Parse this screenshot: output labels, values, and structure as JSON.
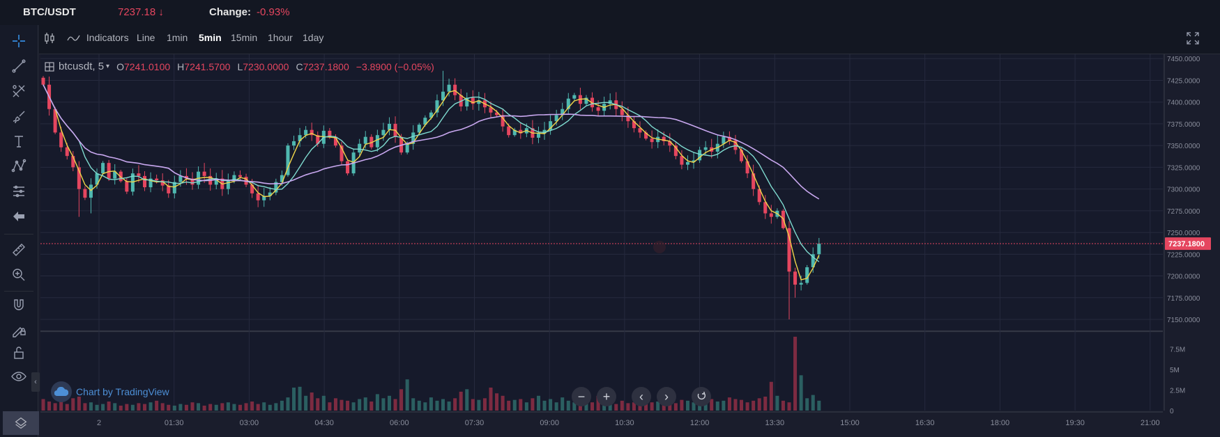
{
  "header": {
    "pair": "BTC/USDT",
    "price": "7237.18",
    "price_arrow": "↓",
    "change_label": "Change:",
    "change_value": "-0.93%"
  },
  "toolbar": {
    "indicators_label": "Indicators",
    "intervals": [
      "Line",
      "1min",
      "5min",
      "15min",
      "1hour",
      "1day"
    ],
    "active_interval": "5min"
  },
  "legend": {
    "symbol": "btcusdt, 5",
    "o_label": "O",
    "o_value": "7241.0100",
    "h_label": "H",
    "h_value": "7241.5700",
    "l_label": "L",
    "l_value": "7230.0000",
    "c_label": "C",
    "c_value": "7237.1800",
    "change": "−3.8900 (−0.05%)"
  },
  "watermark": "Chart by TradingView",
  "colors": {
    "up": "#4fb8b0",
    "down": "#e5465f",
    "ma_fast": "#f0d54a",
    "ma_mid": "#7fdbd0",
    "ma_slow": "#c9a8f0",
    "accent": "#3aa0ff",
    "background": "#131722"
  },
  "icons": {
    "left_tools": [
      "crosshair-icon",
      "trend-line-icon",
      "fib-icon",
      "brush-icon",
      "text-icon",
      "pattern-icon",
      "measure-icon",
      "back-arrow-icon",
      "ruler-icon",
      "zoom-in-icon",
      "magnet-icon",
      "lock-drawing-icon",
      "unlock-icon",
      "eye-icon"
    ]
  },
  "chart_data": {
    "type": "candlestick",
    "price_axis_ticks": [
      "7450.0000",
      "7425.0000",
      "7400.0000",
      "7375.0000",
      "7350.0000",
      "7325.0000",
      "7300.0000",
      "7275.0000",
      "7250.0000",
      "7225.0000",
      "7200.0000",
      "7175.0000",
      "7150.0000"
    ],
    "current_price_label": "7237.1800",
    "current_price": 7237.18,
    "ylim": [
      7138,
      7455
    ],
    "volume_axis_ticks": [
      "7.5M",
      "5M",
      "2.5M",
      "0"
    ],
    "volume_ylim": [
      0,
      9.5
    ],
    "time_axis_ticks": [
      "2",
      "01:30",
      "03:00",
      "04:30",
      "06:00",
      "07:30",
      "09:00",
      "10:30",
      "12:00",
      "13:30",
      "15:00",
      "16:30",
      "18:00",
      "19:30",
      "21:00"
    ],
    "closes": [
      7420,
      7392,
      7365,
      7348,
      7338,
      7325,
      7300,
      7290,
      7305,
      7318,
      7330,
      7312,
      7320,
      7309,
      7297,
      7318,
      7315,
      7302,
      7312,
      7310,
      7304,
      7295,
      7308,
      7315,
      7312,
      7305,
      7320,
      7315,
      7305,
      7312,
      7300,
      7310,
      7316,
      7314,
      7305,
      7295,
      7287,
      7292,
      7296,
      7308,
      7316,
      7350,
      7355,
      7362,
      7368,
      7362,
      7352,
      7367,
      7360,
      7350,
      7332,
      7318,
      7342,
      7352,
      7360,
      7348,
      7362,
      7368,
      7375,
      7360,
      7342,
      7352,
      7365,
      7374,
      7382,
      7388,
      7402,
      7412,
      7420,
      7408,
      7395,
      7405,
      7398,
      7402,
      7394,
      7388,
      7385,
      7372,
      7362,
      7368,
      7364,
      7370,
      7359,
      7364,
      7368,
      7378,
      7385,
      7392,
      7404,
      7408,
      7398,
      7405,
      7394,
      7390,
      7398,
      7402,
      7392,
      7385,
      7378,
      7370,
      7365,
      7358,
      7354,
      7360,
      7355,
      7350,
      7338,
      7328,
      7331,
      7333,
      7345,
      7348,
      7343,
      7352,
      7360,
      7356,
      7345,
      7332,
      7318,
      7300,
      7285,
      7272,
      7268,
      7275,
      7255,
      7205,
      7190,
      7192,
      7210,
      7225,
      7237.18
    ],
    "volumes": [
      1.4,
      1.1,
      0.9,
      1.3,
      0.8,
      1.5,
      1.7,
      0.9,
      1.0,
      0.7,
      0.8,
      1.1,
      0.9,
      0.6,
      0.8,
      0.7,
      0.9,
      0.8,
      1.0,
      1.2,
      0.9,
      0.7,
      0.6,
      0.8,
      0.7,
      1.0,
      0.9,
      0.6,
      0.8,
      0.7,
      0.9,
      1.0,
      0.8,
      0.7,
      0.9,
      1.1,
      0.8,
      1.0,
      0.7,
      0.9,
      1.2,
      1.6,
      2.8,
      2.9,
      1.8,
      2.2,
      1.5,
      1.8,
      1.0,
      1.5,
      1.3,
      1.2,
      1.0,
      1.4,
      1.6,
      1.1,
      2.0,
      1.5,
      1.8,
      1.4,
      2.6,
      3.8,
      1.5,
      1.2,
      1.0,
      1.6,
      1.2,
      1.4,
      1.1,
      1.5,
      2.3,
      2.6,
      1.4,
      1.3,
      1.5,
      2.8,
      2.1,
      1.8,
      1.2,
      1.3,
      1.4,
      1.0,
      1.5,
      1.8,
      1.2,
      1.4,
      1.0,
      1.6,
      1.2,
      1.0,
      1.1,
      0.9,
      1.0,
      1.8,
      0.9,
      1.1,
      0.8,
      1.2,
      0.9,
      1.0,
      1.3,
      0.9,
      1.0,
      1.1,
      1.7,
      1.2,
      0.9,
      1.3,
      1.2,
      1.0,
      1.5,
      1.2,
      1.4,
      1.1,
      1.2,
      1.6,
      1.4,
      1.3,
      1.0,
      1.2,
      1.5,
      1.7,
      3.5,
      1.8,
      1.2,
      1.0,
      9.0,
      4.3,
      1.5,
      1.9,
      1.2
    ]
  }
}
